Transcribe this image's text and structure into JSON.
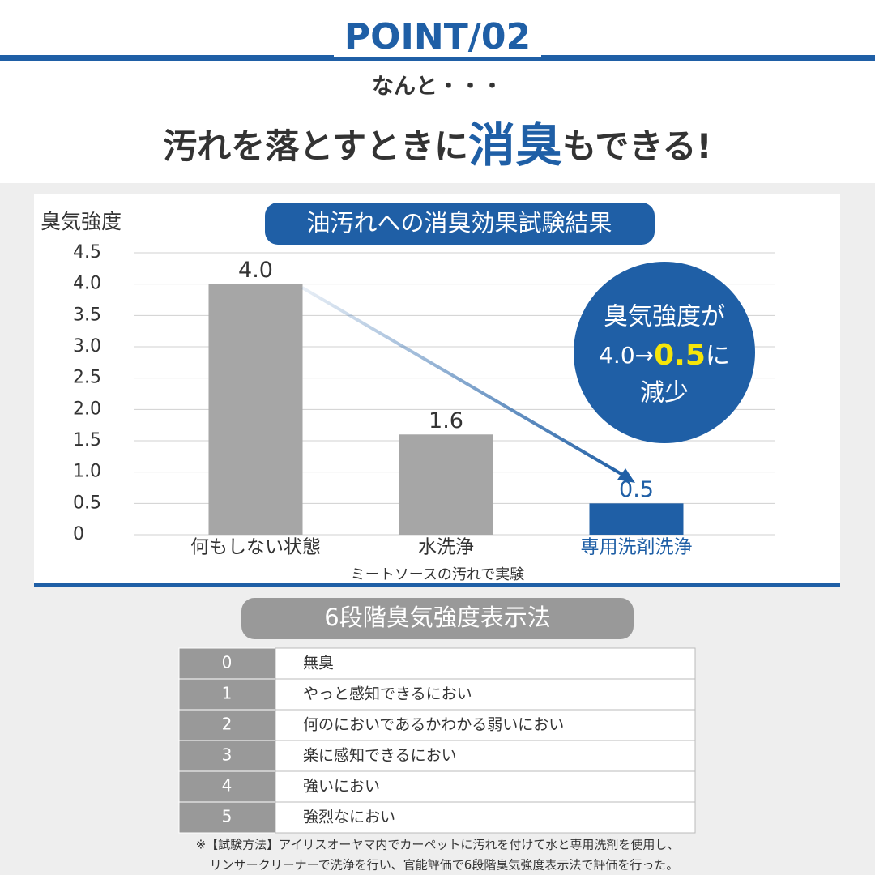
{
  "header": {
    "point": "POINT/02",
    "lead": "なんと・・・",
    "headline_pre": "汚れを落とすときに",
    "headline_em": "消臭",
    "headline_post": "もできる!"
  },
  "chart_data": {
    "type": "bar",
    "title": "油汚れへの消臭効果試験結果",
    "y_label": "臭気強度",
    "x_label": "ミートソースの汚れで実験",
    "categories": [
      "何もしない状態",
      "水洗浄",
      "専用洗剤洗浄"
    ],
    "values": [
      4.0,
      1.6,
      0.5
    ],
    "value_labels": [
      "4.0",
      "1.6",
      "0.5"
    ],
    "colors": [
      "#a6a6a6",
      "#a6a6a6",
      "#1f5fa6"
    ],
    "label_colors": [
      "#333333",
      "#333333",
      "#1f5fa6"
    ],
    "ylim": [
      0,
      4.5
    ],
    "yticks": [
      0,
      0.5,
      {
        "value": 1,
        "label": "1.0"
      },
      1.5,
      {
        "value": 2,
        "label": "2.0"
      },
      2.5,
      {
        "value": 3,
        "label": "3.0"
      },
      3.5,
      {
        "value": 4,
        "label": "4.0"
      },
      4.5
    ],
    "grid": true
  },
  "callout": {
    "line1": "臭気強度が",
    "from": "4.0→",
    "to": "0.5",
    "suffix": "に",
    "line3": "減少"
  },
  "scale": {
    "title": "6段階臭気強度表示法",
    "rows": [
      [
        0,
        "無臭"
      ],
      [
        1,
        "やっと感知できるにおい"
      ],
      [
        2,
        "何のにおいであるかわかる弱いにおい"
      ],
      [
        3,
        "楽に感知できるにおい"
      ],
      [
        4,
        "強いにおい"
      ],
      [
        5,
        "強烈なにおい"
      ]
    ]
  },
  "footnote": {
    "line1": "※【試験方法】アイリスオーヤマ内でカーペットに汚れを付けて水と専用洗剤を使用し、",
    "line2": "リンサークリーナーで洗浄を行い、官能評価で6段階臭気強度表示法で評価を行った。"
  }
}
